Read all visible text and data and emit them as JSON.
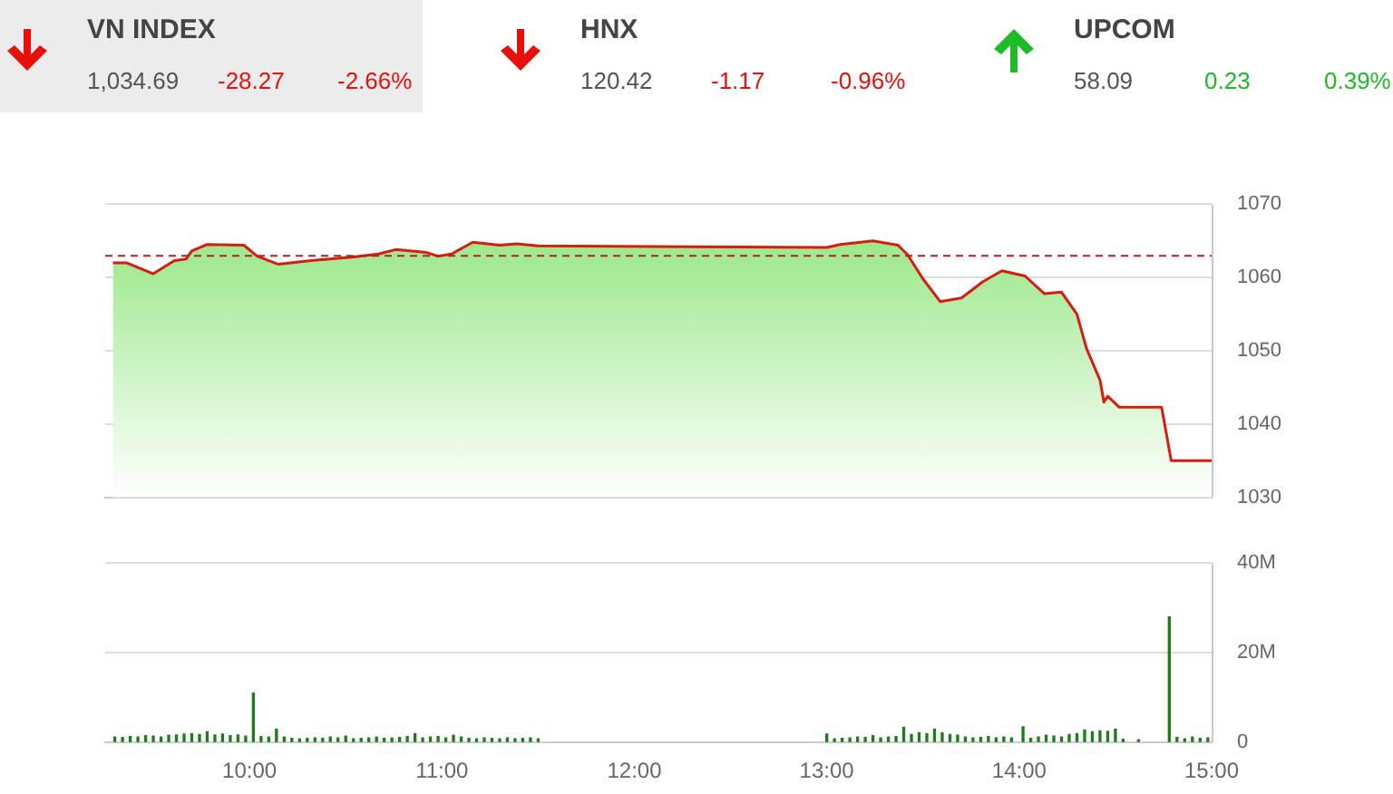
{
  "chart_data": [
    {
      "type": "other",
      "title": "VN INDEX",
      "annotations": [
        "1,034.69",
        "-28.27",
        "-2.66%"
      ]
    },
    {
      "type": "other",
      "title": "HNX",
      "annotations": [
        "120.42",
        "-1.17",
        "-0.96%"
      ]
    },
    {
      "type": "other",
      "title": "UPCOM",
      "annotations": [
        "58.09",
        "0.23",
        "0.39%"
      ]
    },
    {
      "type": "area",
      "tick_labels": "y",
      "grid": "y",
      "xlim": [
        9.25,
        15
      ],
      "ylim": [
        1030,
        1070
      ],
      "yticks": [
        1030,
        1040,
        1050,
        1060,
        1070
      ],
      "ref_lines": [
        {
          "axis": "y",
          "value": 1062.96,
          "color": "#b22222",
          "line_style": "dashed"
        }
      ],
      "series": [
        {
          "color": "#d81c12",
          "x": [
            9.29,
            9.36,
            9.5,
            9.61,
            9.67,
            9.7,
            9.78,
            9.97,
            10.04,
            10.15,
            10.32,
            10.54,
            10.67,
            10.76,
            10.92,
            10.98,
            11.05,
            11.16,
            11.3,
            11.39,
            11.5,
            13.0,
            13.07,
            13.24,
            13.37,
            13.42,
            13.5,
            13.59,
            13.7,
            13.81,
            13.91,
            14.03,
            14.13,
            14.22,
            14.3,
            14.35,
            14.42,
            14.44,
            14.46,
            14.52,
            14.74,
            14.79,
            15.0
          ],
          "values": [
            1062.0,
            1062.0,
            1060.5,
            1062.3,
            1062.5,
            1063.6,
            1064.5,
            1064.4,
            1062.9,
            1061.8,
            1062.3,
            1062.8,
            1063.2,
            1063.8,
            1063.4,
            1062.9,
            1063.2,
            1064.8,
            1064.4,
            1064.6,
            1064.3,
            1064.1,
            1064.5,
            1065.0,
            1064.4,
            1063.1,
            1059.8,
            1056.7,
            1057.2,
            1059.4,
            1060.9,
            1060.2,
            1057.8,
            1058.0,
            1055.0,
            1050.3,
            1046.0,
            1043.0,
            1043.8,
            1042.3,
            1042.3,
            1035.0,
            1035.0
          ]
        }
      ]
    },
    {
      "type": "bar",
      "grid": "y",
      "xlim": [
        9.25,
        15
      ],
      "xticks": [
        {
          "value": 10,
          "label": "10:00"
        },
        {
          "value": 11,
          "label": "11:00"
        },
        {
          "value": 12,
          "label": "12:00"
        },
        {
          "value": 13,
          "label": "13:00"
        },
        {
          "value": 14,
          "label": "14:00"
        },
        {
          "value": 15,
          "label": "15:00"
        }
      ],
      "ylim": [
        0,
        40
      ],
      "yticks": [
        0,
        {
          "value": 20,
          "label": "20M"
        },
        {
          "value": 40,
          "label": "40M"
        }
      ],
      "series": [
        {
          "color": "#1e7b1e",
          "x": [
            9.3,
            9.34,
            9.38,
            9.42,
            9.46,
            9.5,
            9.54,
            9.58,
            9.62,
            9.66,
            9.7,
            9.74,
            9.78,
            9.82,
            9.86,
            9.9,
            9.94,
            9.98,
            10.02,
            10.06,
            10.1,
            10.14,
            10.18,
            10.22,
            10.26,
            10.3,
            10.34,
            10.38,
            10.42,
            10.46,
            10.5,
            10.54,
            10.58,
            10.62,
            10.66,
            10.7,
            10.74,
            10.78,
            10.82,
            10.86,
            10.9,
            10.94,
            10.98,
            11.02,
            11.06,
            11.1,
            11.14,
            11.18,
            11.22,
            11.26,
            11.3,
            11.34,
            11.38,
            11.42,
            11.46,
            11.5,
            13.0,
            13.04,
            13.08,
            13.12,
            13.16,
            13.2,
            13.24,
            13.28,
            13.32,
            13.36,
            13.4,
            13.44,
            13.48,
            13.52,
            13.56,
            13.6,
            13.64,
            13.68,
            13.72,
            13.76,
            13.8,
            13.84,
            13.88,
            13.92,
            13.96,
            14.02,
            14.06,
            14.1,
            14.14,
            14.18,
            14.22,
            14.26,
            14.3,
            14.34,
            14.38,
            14.42,
            14.46,
            14.5,
            14.54,
            14.62,
            14.78,
            14.82,
            14.86,
            14.9,
            14.94,
            14.98
          ],
          "values": [
            1.2,
            1.1,
            1.3,
            1.2,
            1.5,
            1.4,
            1.2,
            1.6,
            1.7,
            1.9,
            2.0,
            1.8,
            2.4,
            1.7,
            1.9,
            1.5,
            1.7,
            1.4,
            11,
            1.3,
            1.2,
            3.0,
            1.2,
            0.9,
            0.8,
            0.9,
            1.0,
            0.9,
            1.2,
            1.0,
            1.4,
            0.8,
            0.9,
            1.0,
            1.2,
            0.9,
            1.0,
            1.1,
            1.3,
            2.0,
            1.0,
            1.2,
            1.3,
            1.0,
            1.6,
            1.2,
            0.9,
            0.8,
            1.0,
            0.9,
            0.8,
            1.0,
            0.8,
            0.9,
            1.0,
            0.8,
            1.9,
            0.8,
            0.9,
            1.0,
            1.2,
            1.1,
            1.5,
            1.0,
            1.2,
            1.3,
            3.4,
            1.8,
            2.2,
            2.0,
            3.0,
            2.2,
            1.8,
            1.6,
            1.2,
            1.0,
            1.1,
            1.3,
            1.0,
            1.2,
            1.0,
            3.5,
            0.9,
            1.2,
            1.6,
            1.4,
            1.2,
            1.8,
            2.0,
            2.8,
            2.4,
            2.6,
            2.5,
            3.0,
            0.7,
            0.6,
            28,
            1.1,
            0.8,
            1.2,
            0.9,
            1.0
          ]
        }
      ]
    }
  ]
}
